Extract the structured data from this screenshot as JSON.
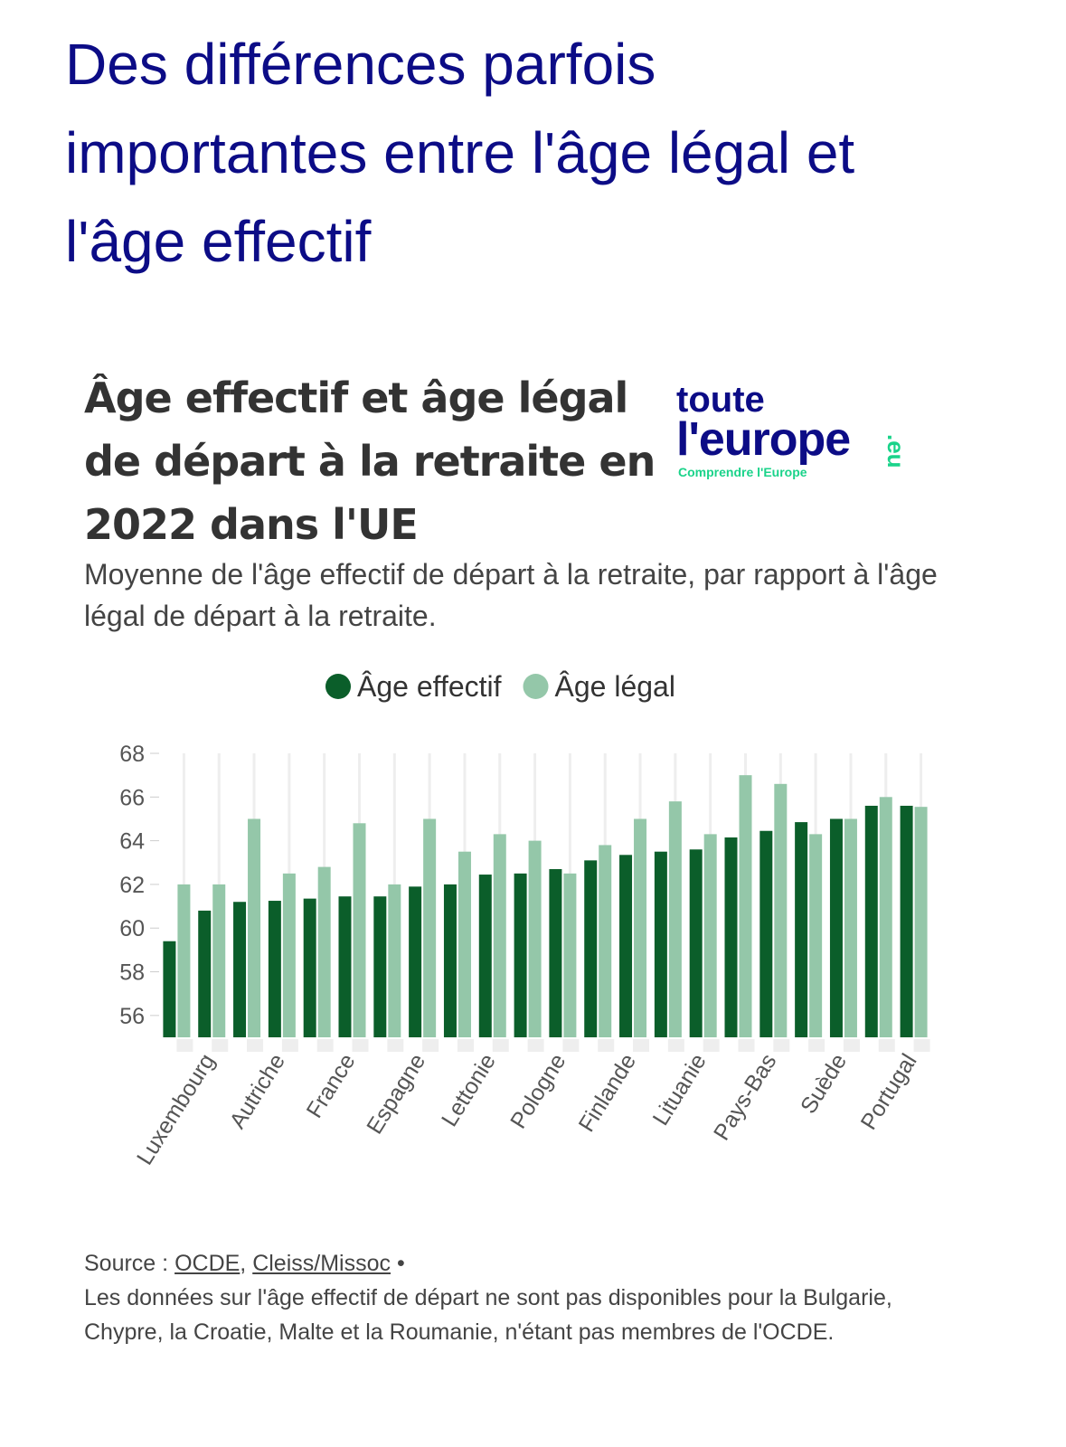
{
  "header": {
    "title": "Des différences parfois importantes entre l'âge légal et l'âge effectif"
  },
  "logo": {
    "line1": "toute",
    "line2": "l'europe",
    "suffix": ".eu",
    "tagline": "Comprendre l'Europe"
  },
  "chart_data": {
    "type": "bar",
    "title": "Âge effectif et âge légal de départ à la retraite en 2022 dans l'UE",
    "subtitle": "Moyenne de l'âge effectif de départ à la retraite, par rapport à l'âge légal de départ à la retraite.",
    "categories": [
      null,
      "Luxembourg",
      null,
      "Autriche",
      null,
      "France",
      null,
      "Espagne",
      null,
      "Lettonie",
      null,
      "Pologne",
      null,
      "Finlande",
      null,
      "Lituanie",
      null,
      "Pays-Bas",
      null,
      "Suède",
      null,
      "Portugal"
    ],
    "series": [
      {
        "name": "Âge effectif",
        "color": "#0b5e2a",
        "values": [
          59.4,
          60.8,
          61.2,
          61.25,
          61.35,
          61.45,
          61.45,
          61.9,
          62.0,
          62.45,
          62.5,
          62.7,
          63.1,
          63.35,
          63.5,
          63.6,
          64.15,
          64.45,
          64.85,
          65.0,
          65.6,
          65.6
        ]
      },
      {
        "name": "Âge légal",
        "color": "#94c7a9",
        "values": [
          62,
          62,
          65,
          62.5,
          62.8,
          64.8,
          62,
          65,
          63.5,
          64.3,
          64,
          62.5,
          63.8,
          65,
          65.8,
          64.3,
          67,
          66.6,
          64.3,
          65,
          66,
          65.55
        ]
      }
    ],
    "ylim": [
      55,
      68
    ],
    "yticks": [
      56,
      58,
      60,
      62,
      64,
      66,
      68
    ],
    "legend": "top"
  },
  "footer": {
    "source_label": "Source :",
    "links": [
      "OCDE",
      "Cleiss/Missoc"
    ],
    "note": "Les données sur l'âge effectif de départ ne sont pas disponibles pour la Bulgarie, Chypre, la Croatie, Malte et la Roumanie, n'étant pas membres de l'OCDE."
  }
}
